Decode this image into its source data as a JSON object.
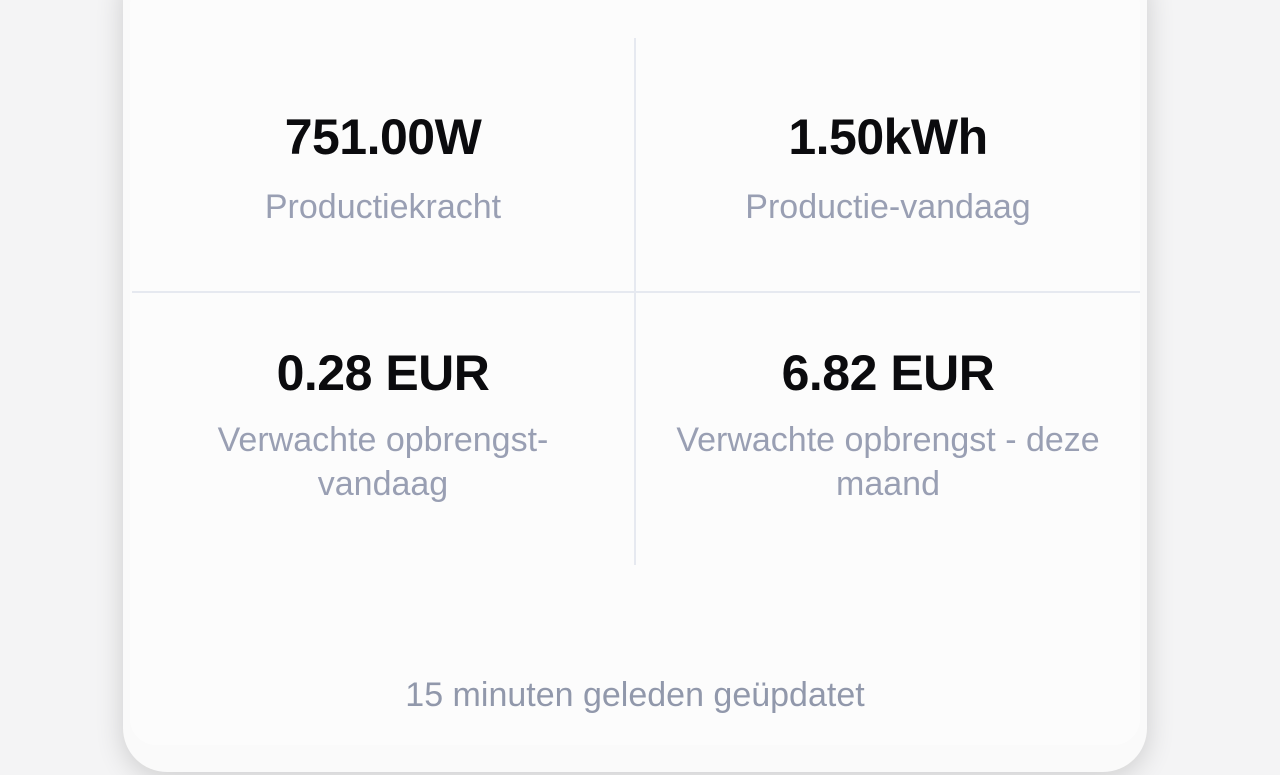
{
  "theme": {
    "page_bg": "#f4f4f5",
    "sheet_bg": "#fafafa",
    "card_bg": "#fcfcfc",
    "divider": "#e6e9f0",
    "value_color": "#0b0b0e",
    "label_color": "#999fb3",
    "footer_color": "#9198ab"
  },
  "stats": [
    {
      "value": "751.00W",
      "label": "Productiekracht"
    },
    {
      "value": "1.50kWh",
      "label": "Productie-vandaag"
    },
    {
      "value": "0.28 EUR",
      "label": "Verwachte opbrengst-vandaag"
    },
    {
      "value": "6.82 EUR",
      "label": "Verwachte opbrengst - deze maand"
    }
  ],
  "footer": {
    "updated_text": "15 minuten geleden geüpdatet"
  }
}
